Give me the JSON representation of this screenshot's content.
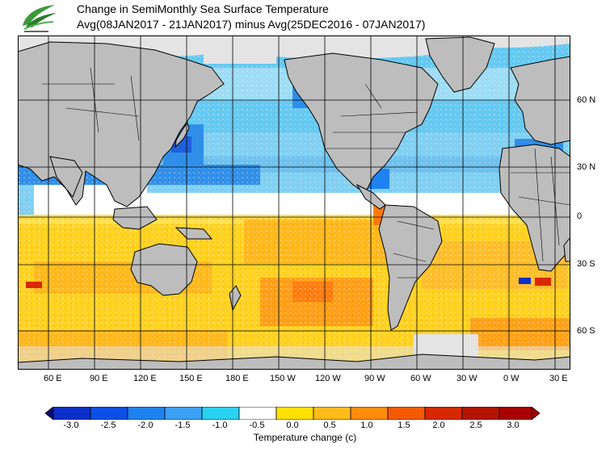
{
  "title": {
    "line1": "Change in SemiMonthly Sea Surface Temperature",
    "line2": "Avg(08JAN2017 - 21JAN2017) minus Avg(25DEC2016 - 07JAN2017)"
  },
  "map": {
    "lon_labels": [
      "60 E",
      "90 E",
      "120 E",
      "150 E",
      "180 E",
      "150 W",
      "120 W",
      "90 W",
      "60 W",
      "30 W",
      "0 W",
      "30 E"
    ],
    "lat_labels": [
      "60 N",
      "30 N",
      "0",
      "30 S",
      "60 S"
    ],
    "colors": {
      "land": "#bdbdbd",
      "ice": "#e4e4e4",
      "coast": "#000000",
      "grid": "#000000"
    }
  },
  "legend": {
    "units_label": "Temperature change  (c)",
    "ticks": [
      "-3.0",
      "-2.5",
      "-2.0",
      "-1.5",
      "-1.0",
      "-0.5",
      "0.0",
      "0.5",
      "1.0",
      "1.5",
      "2.0",
      "2.5",
      "3.0"
    ],
    "colors": [
      "#0a0a78",
      "#0b2fc8",
      "#0a50e6",
      "#1e82f0",
      "#3ca0f5",
      "#28d2f0",
      "#ffffff",
      "#ffe000",
      "#ffbb1a",
      "#ff8c0a",
      "#f55a00",
      "#d82800",
      "#a80000"
    ]
  }
}
